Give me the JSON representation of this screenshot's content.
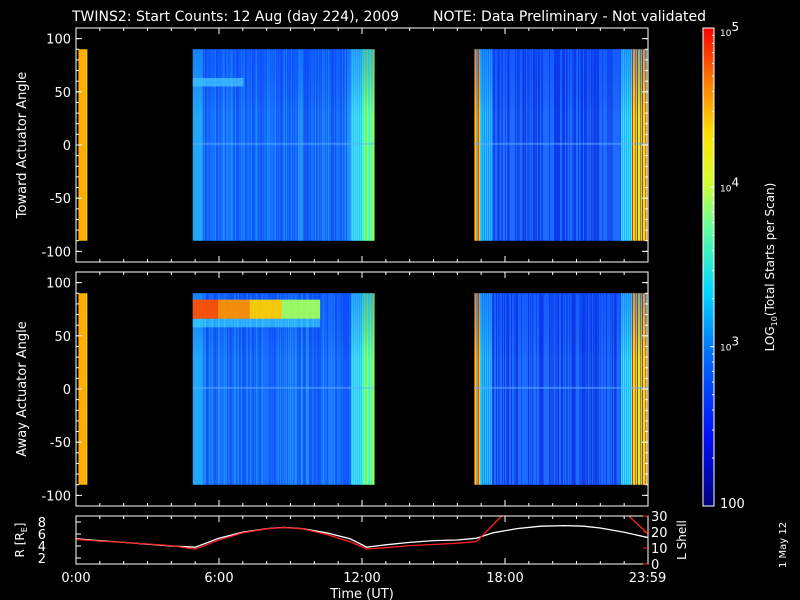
{
  "title": "TWINS2: Start Counts: 12 Aug (day 224), 2009",
  "note": "NOTE: Data Preliminary - Not validated",
  "stamp": "1 May 12",
  "colors": {
    "note": "#ff2020",
    "lshell": "#ff2020",
    "radius": "#ffffff",
    "axis": "#ffffff"
  },
  "chart_data": [
    {
      "type": "heatmap",
      "panel": "toward",
      "ylabel": "Toward Actuator Angle",
      "ylim": [
        -110,
        110
      ],
      "yticks": [
        "100",
        "50",
        "0",
        "-50",
        "-100"
      ],
      "ytick_values": [
        100,
        50,
        0,
        -50,
        -100
      ],
      "xlim": [
        0,
        24
      ],
      "coverage_hours": [
        [
          0.1,
          0.45
        ],
        [
          4.9,
          12.5
        ],
        [
          16.7,
          24.0
        ]
      ],
      "angle_range": [
        -90,
        90
      ]
    },
    {
      "type": "heatmap",
      "panel": "away",
      "ylabel": "Away Actuator Angle",
      "ylim": [
        -110,
        110
      ],
      "yticks": [
        "100",
        "50",
        "0",
        "-50",
        "-100"
      ],
      "ytick_values": [
        100,
        50,
        0,
        -50,
        -100
      ],
      "xlim": [
        0,
        24
      ],
      "coverage_hours": [
        [
          0.1,
          0.45
        ],
        [
          4.9,
          12.5
        ],
        [
          16.7,
          24.0
        ]
      ],
      "angle_range": [
        -90,
        90
      ]
    },
    {
      "type": "line",
      "panel": "orbit",
      "xlabel": "Time (UT)",
      "xticks": [
        "0:00",
        "6:00",
        "12:00",
        "18:00",
        "23:59"
      ],
      "xtick_values": [
        0,
        6,
        12,
        18,
        23.98
      ],
      "ylabel_left": "R [R",
      "ylabel_left_sub": "E",
      "ylabel_left_end": "]",
      "yticks_left": [
        "8",
        "6",
        "4",
        "2"
      ],
      "ytick_left_values": [
        8,
        6,
        4,
        2
      ],
      "ylim_left": [
        1,
        9
      ],
      "ylabel_right": "L Shell",
      "yticks_right": [
        "30",
        "20",
        "10",
        "0"
      ],
      "ytick_right_values": [
        30,
        20,
        10,
        0
      ],
      "ylim_right": [
        0,
        30
      ],
      "series": [
        {
          "name": "R",
          "axis": "left",
          "x": [
            0,
            1,
            2,
            3,
            4,
            5,
            6,
            7,
            8,
            8.7,
            9.5,
            10.5,
            11.5,
            12.2,
            13,
            14,
            15,
            16,
            16.8,
            17.5,
            18.5,
            19.5,
            20.5,
            21.3,
            22,
            23,
            24
          ],
          "y": [
            5.2,
            4.9,
            4.6,
            4.3,
            4.0,
            3.8,
            5.3,
            6.3,
            6.9,
            7.1,
            6.9,
            6.2,
            5.2,
            3.8,
            4.2,
            4.6,
            4.9,
            5.0,
            5.3,
            6.2,
            6.9,
            7.3,
            7.4,
            7.3,
            7.0,
            6.3,
            5.4
          ]
        },
        {
          "name": "L Shell",
          "axis": "right",
          "x": [
            0,
            1,
            2,
            3,
            4,
            5,
            6,
            7,
            8,
            8.7,
            9.5,
            10.5,
            11.5,
            12.2,
            13,
            14,
            15,
            16,
            16.8,
            17.4,
            17.85
          ],
          "y": [
            15.4,
            14.3,
            13.5,
            12.5,
            11.5,
            9.3,
            15.0,
            19.5,
            22.0,
            22.8,
            22.0,
            18.5,
            14.0,
            9.4,
            10.2,
            11.5,
            12.2,
            13.0,
            14.0,
            23.0,
            30.0
          ]
        },
        {
          "name": "L Shell",
          "axis": "right",
          "x": [
            23.2,
            23.55,
            24
          ],
          "y": [
            30.0,
            25.0,
            19.0
          ]
        }
      ]
    },
    {
      "type": "heatmap",
      "panel": "colorbar",
      "label": "LOG",
      "label_sub": "10",
      "label_rest": "(Total Starts per Scan)",
      "scale": "log",
      "range": [
        100,
        100000
      ],
      "ticks": [
        "10",
        "10",
        "10",
        "100"
      ],
      "tick_exps": [
        "5",
        "4",
        "3",
        ""
      ],
      "tick_values": [
        100000,
        10000,
        1000,
        100
      ]
    }
  ]
}
